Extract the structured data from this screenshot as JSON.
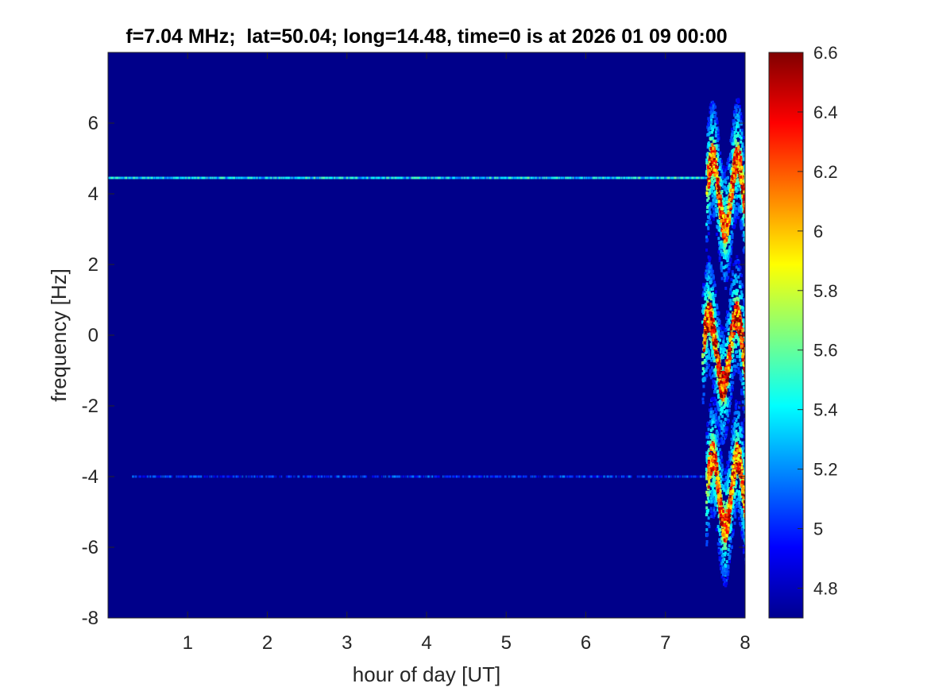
{
  "chart_data": {
    "type": "heatmap",
    "title": "f=7.04 MHz;  lat=50.04; long=14.48, time=0 is at 2026 01 09 00:00",
    "xlabel": "hour of day [UT]",
    "ylabel": "frequency [Hz]",
    "xlim": [
      0,
      8
    ],
    "ylim": [
      -8,
      8
    ],
    "x_ticks": [
      1,
      2,
      3,
      4,
      5,
      6,
      7,
      8
    ],
    "y_ticks": [
      -8,
      -6,
      -4,
      -2,
      0,
      2,
      4,
      6
    ],
    "colorbar": {
      "colormap": "jet",
      "clim": [
        4.7,
        6.6
      ],
      "ticks": [
        4.8,
        5,
        5.2,
        5.4,
        5.6,
        5.8,
        6,
        6.2,
        6.4,
        6.6
      ]
    },
    "background_value": 4.72,
    "features": [
      {
        "kind": "carrier-line",
        "freq_hz": 4.45,
        "x_start": 0,
        "x_end": 7.5,
        "value": 5.3
      },
      {
        "kind": "carrier-line",
        "freq_hz": -4.0,
        "x_start": 0.3,
        "x_end": 7.5,
        "value": 4.9
      },
      {
        "kind": "doppler-trace",
        "center_hz": 4.45,
        "x_start": 7.5,
        "x_end": 8,
        "value": 6.5
      },
      {
        "kind": "doppler-trace",
        "center_hz": 0.0,
        "x_start": 7.45,
        "x_end": 8,
        "value": 6.6
      },
      {
        "kind": "doppler-trace",
        "center_hz": -4.0,
        "x_start": 7.5,
        "x_end": 8,
        "value": 6.5
      }
    ]
  }
}
